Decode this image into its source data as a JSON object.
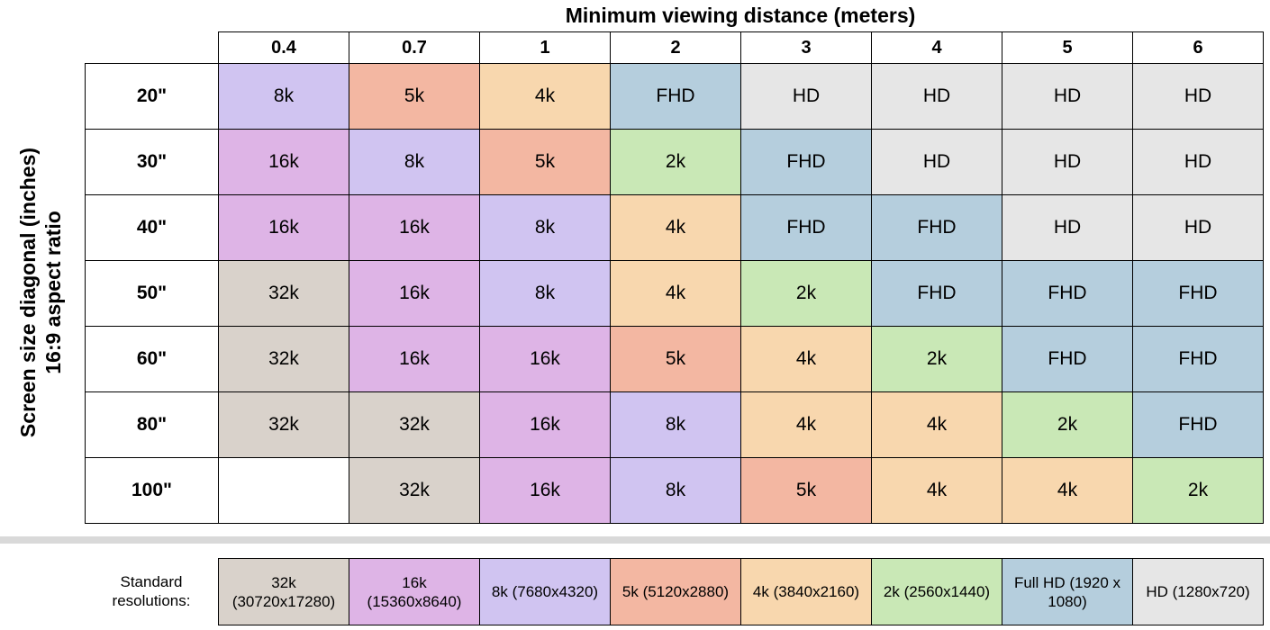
{
  "chart_data": {
    "type": "table",
    "title": "Minimum viewing distance (meters)",
    "ylabel": [
      "Screen size diagonal (inches)",
      "16:9 aspect ratio"
    ],
    "columns": [
      "0.4",
      "0.7",
      "1",
      "2",
      "3",
      "4",
      "5",
      "6"
    ],
    "rows": [
      {
        "label": "20\"",
        "values": [
          "8k",
          "5k",
          "4k",
          "FHD",
          "HD",
          "HD",
          "HD",
          "HD"
        ]
      },
      {
        "label": "30\"",
        "values": [
          "16k",
          "8k",
          "5k",
          "2k",
          "FHD",
          "HD",
          "HD",
          "HD"
        ]
      },
      {
        "label": "40\"",
        "values": [
          "16k",
          "16k",
          "8k",
          "4k",
          "FHD",
          "FHD",
          "HD",
          "HD"
        ]
      },
      {
        "label": "50\"",
        "values": [
          "32k",
          "16k",
          "8k",
          "4k",
          "2k",
          "FHD",
          "FHD",
          "FHD"
        ]
      },
      {
        "label": "60\"",
        "values": [
          "32k",
          "16k",
          "16k",
          "5k",
          "4k",
          "2k",
          "FHD",
          "FHD"
        ]
      },
      {
        "label": "80\"",
        "values": [
          "32k",
          "32k",
          "16k",
          "8k",
          "4k",
          "4k",
          "2k",
          "FHD"
        ]
      },
      {
        "label": "100\"",
        "values": [
          "",
          "32k",
          "16k",
          "8k",
          "5k",
          "4k",
          "4k",
          "2k"
        ]
      }
    ],
    "legend_caption": "Standard resolutions:",
    "legend": [
      {
        "key": "32k",
        "label": "32k (30720x17280)",
        "color": "#d9d2cb"
      },
      {
        "key": "16k",
        "label": "16k (15360x8640)",
        "color": "#deb4e6"
      },
      {
        "key": "8k",
        "label": "8k (7680x4320)",
        "color": "#d0c4f1"
      },
      {
        "key": "5k",
        "label": "5k (5120x2880)",
        "color": "#f3b7a2"
      },
      {
        "key": "4k",
        "label": "4k (3840x2160)",
        "color": "#f8d7ae"
      },
      {
        "key": "2k",
        "label": "2k (2560x1440)",
        "color": "#c9e8b6"
      },
      {
        "key": "FHD",
        "label": "Full HD (1920 x 1080)",
        "color": "#b5cedd"
      },
      {
        "key": "HD",
        "label": "HD (1280x720)",
        "color": "#e6e6e6"
      }
    ]
  }
}
